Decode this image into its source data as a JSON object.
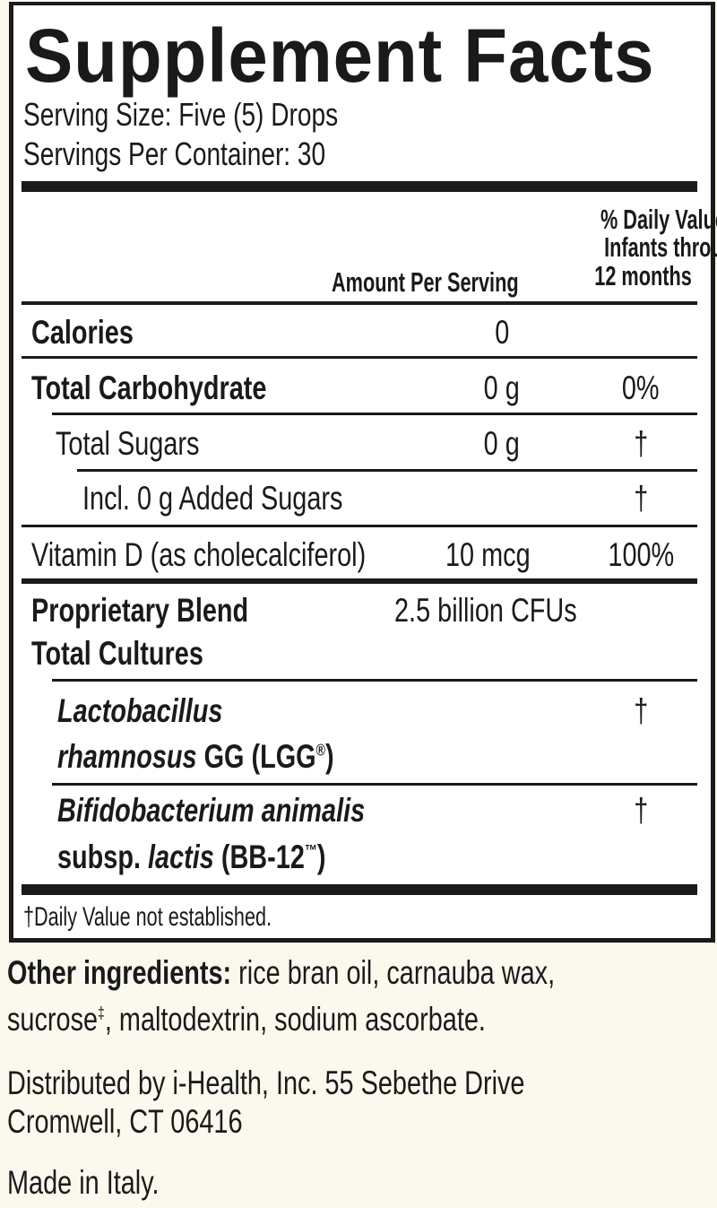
{
  "title": "Supplement Facts",
  "serving_size": "Serving Size: Five (5) Drops",
  "servings_per_container": "Servings Per Container: 30",
  "header": {
    "amount": "Amount Per Serving",
    "dv_line1": "% Daily Value",
    "dv_line2": "Infants through",
    "dv_line3": "12 months"
  },
  "rows": [
    {
      "name": "Calories",
      "amount": "0",
      "dv": ""
    },
    {
      "name": "Total Carbohydrate",
      "amount": "0 g",
      "dv": "0%"
    },
    {
      "name": "Total Sugars",
      "amount": "0 g",
      "dv": "†"
    },
    {
      "name": "Incl. 0 g Added Sugars",
      "amount": "",
      "dv": "†"
    },
    {
      "name": "Vitamin D (as cholecalciferol)",
      "amount": "10 mcg",
      "dv": "100%"
    }
  ],
  "blend": {
    "name_line1": "Proprietary Blend",
    "name_line2": "Total Cultures",
    "amount": "2.5 billion CFUs"
  },
  "cultures": [
    {
      "line1_italic": "Lactobacillus",
      "line2_italic": "rhamnosus",
      "line2_rest": " GG (LGG",
      "mark": "®",
      "close": ")",
      "dv": "†"
    },
    {
      "line1_italic": "Bifidobacterium animalis",
      "line2_prefix": "subsp. ",
      "line2_italic": "lactis",
      "line2_rest": " (BB-12",
      "mark": "™",
      "close": ")",
      "dv": "†"
    }
  ],
  "footnote": "†Daily Value not established.",
  "other_ingredients": {
    "label": "Other ingredients:",
    "line1": " rice bran oil, carnauba wax,",
    "line2_a": "sucrose",
    "line2_mark": "‡",
    "line2_b": ", maltodextrin, sodium ascorbate."
  },
  "distributor_line1": "Distributed by i-Health, Inc. 55 Sebethe Drive",
  "distributor_line2": "Cromwell, CT 06416",
  "origin": "Made in Italy.",
  "colors": {
    "background": "#fbf9ee",
    "panel": "#ffffff",
    "ink": "#1a1a1a"
  }
}
